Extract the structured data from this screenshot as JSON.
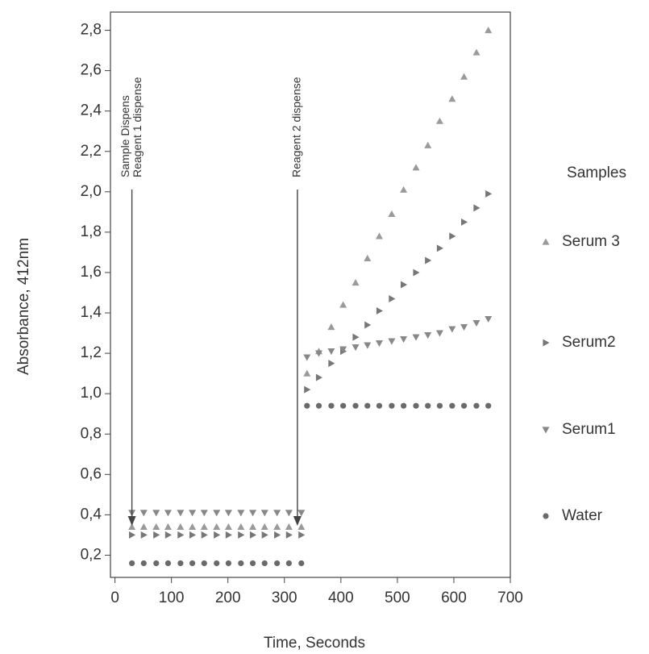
{
  "chart_data": {
    "type": "scatter",
    "xlabel": "Time, Seconds",
    "ylabel": "Absorbance, 412nm",
    "legend_title": "Samples",
    "x": [
      30,
      51,
      73,
      94,
      116,
      137,
      158,
      180,
      201,
      223,
      244,
      265,
      287,
      308,
      330,
      340,
      361,
      383,
      404,
      426,
      447,
      468,
      490,
      511,
      533,
      554,
      575,
      597,
      618,
      640,
      661
    ],
    "series": [
      {
        "name": "Serum 3",
        "color": "#9a9a9a",
        "marker": "^",
        "values": [
          0.34,
          0.34,
          0.34,
          0.34,
          0.34,
          0.34,
          0.34,
          0.34,
          0.34,
          0.34,
          0.34,
          0.34,
          0.34,
          0.34,
          0.34,
          1.1,
          1.21,
          1.33,
          1.44,
          1.55,
          1.67,
          1.78,
          1.89,
          2.01,
          2.12,
          2.23,
          2.35,
          2.46,
          2.57,
          2.69,
          2.8
        ]
      },
      {
        "name": "Serum2",
        "color": "#777777",
        "marker": ">",
        "values": [
          0.3,
          0.3,
          0.3,
          0.3,
          0.3,
          0.3,
          0.3,
          0.3,
          0.3,
          0.3,
          0.3,
          0.3,
          0.3,
          0.3,
          0.3,
          1.02,
          1.08,
          1.15,
          1.21,
          1.28,
          1.34,
          1.41,
          1.47,
          1.54,
          1.6,
          1.66,
          1.72,
          1.78,
          1.85,
          1.92,
          1.99
        ]
      },
      {
        "name": "Serum1",
        "color": "#888888",
        "marker": "v",
        "values": [
          0.41,
          0.41,
          0.41,
          0.41,
          0.41,
          0.41,
          0.41,
          0.41,
          0.41,
          0.41,
          0.41,
          0.41,
          0.41,
          0.41,
          0.41,
          1.18,
          1.2,
          1.21,
          1.22,
          1.23,
          1.24,
          1.25,
          1.26,
          1.27,
          1.28,
          1.29,
          1.3,
          1.32,
          1.33,
          1.35,
          1.37
        ]
      },
      {
        "name": "Water",
        "color": "#6a6a6a",
        "marker": "o",
        "values": [
          0.16,
          0.16,
          0.16,
          0.16,
          0.16,
          0.16,
          0.16,
          0.16,
          0.16,
          0.16,
          0.16,
          0.16,
          0.16,
          0.16,
          0.16,
          0.94,
          0.94,
          0.94,
          0.94,
          0.94,
          0.94,
          0.94,
          0.94,
          0.94,
          0.94,
          0.94,
          0.94,
          0.94,
          0.94,
          0.94,
          0.94
        ]
      }
    ],
    "annotations": [
      {
        "text": [
          "Sample Dispens",
          "Reagent 1 dispense"
        ],
        "x": 30
      },
      {
        "text": [
          "Reagent 2 dispense"
        ],
        "x": 323
      }
    ],
    "xlim": [
      -8,
      700
    ],
    "ylim": [
      0.09,
      2.89
    ],
    "xticks": [
      0,
      100,
      200,
      300,
      400,
      500,
      600,
      700
    ],
    "yticks": [
      {
        "value": 0.2,
        "label": "0,2"
      },
      {
        "value": 0.4,
        "label": "0,4"
      },
      {
        "value": 0.6,
        "label": "0,6"
      },
      {
        "value": 0.8,
        "label": "0,8"
      },
      {
        "value": 1.0,
        "label": "1,0"
      },
      {
        "value": 1.2,
        "label": "1,2"
      },
      {
        "value": 1.4,
        "label": "1,4"
      },
      {
        "value": 1.6,
        "label": "1,6"
      },
      {
        "value": 1.8,
        "label": "1,8"
      },
      {
        "value": 2.0,
        "label": "2,0"
      },
      {
        "value": 2.2,
        "label": "2,2"
      },
      {
        "value": 2.4,
        "label": "2,4"
      },
      {
        "value": 2.6,
        "label": "2,6"
      },
      {
        "value": 2.8,
        "label": "2,8"
      }
    ],
    "grid": false
  }
}
